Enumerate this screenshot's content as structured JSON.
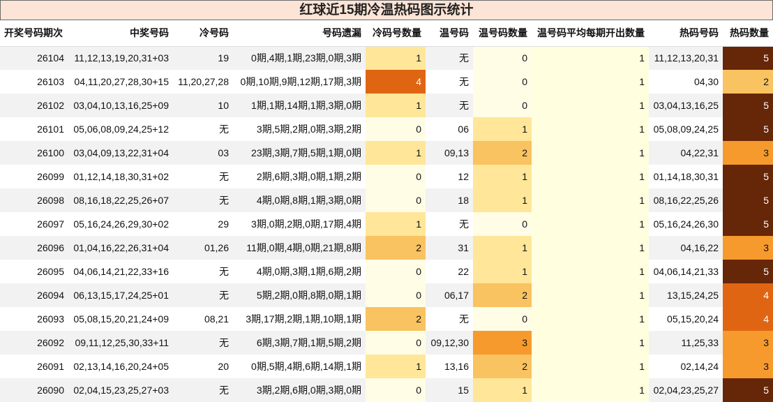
{
  "title": "红球近15期冷温热码图示统计",
  "headers": [
    "开奖号码期次",
    "中奖号码",
    "冷号码",
    "号码遗漏",
    "冷码号数量",
    "温号码",
    "温号码数量",
    "温号码平均每期开出数量",
    "热码号码",
    "热码数量"
  ],
  "rows": [
    {
      "issue": "26104",
      "win": "11,12,13,19,20,31+03",
      "cold": "19",
      "miss": "0期,4期,1期,23期,0期,3期",
      "cold_n": "1",
      "warm": "无",
      "warm_n": "0",
      "avg": "1",
      "hot": "11,12,13,20,31",
      "hot_n": "5"
    },
    {
      "issue": "26103",
      "win": "04,11,20,27,28,30+15",
      "cold": "11,20,27,28",
      "miss": "0期,10期,9期,12期,17期,3期",
      "cold_n": "4",
      "warm": "无",
      "warm_n": "0",
      "avg": "1",
      "hot": "04,30",
      "hot_n": "2"
    },
    {
      "issue": "26102",
      "win": "03,04,10,13,16,25+09",
      "cold": "10",
      "miss": "1期,1期,14期,1期,3期,0期",
      "cold_n": "1",
      "warm": "无",
      "warm_n": "0",
      "avg": "1",
      "hot": "03,04,13,16,25",
      "hot_n": "5"
    },
    {
      "issue": "26101",
      "win": "05,06,08,09,24,25+12",
      "cold": "无",
      "miss": "3期,5期,2期,0期,3期,2期",
      "cold_n": "0",
      "warm": "06",
      "warm_n": "1",
      "avg": "1",
      "hot": "05,08,09,24,25",
      "hot_n": "5"
    },
    {
      "issue": "26100",
      "win": "03,04,09,13,22,31+04",
      "cold": "03",
      "miss": "23期,3期,7期,5期,1期,0期",
      "cold_n": "1",
      "warm": "09,13",
      "warm_n": "2",
      "avg": "1",
      "hot": "04,22,31",
      "hot_n": "3"
    },
    {
      "issue": "26099",
      "win": "01,12,14,18,30,31+02",
      "cold": "无",
      "miss": "2期,6期,3期,0期,1期,2期",
      "cold_n": "0",
      "warm": "12",
      "warm_n": "1",
      "avg": "1",
      "hot": "01,14,18,30,31",
      "hot_n": "5"
    },
    {
      "issue": "26098",
      "win": "08,16,18,22,25,26+07",
      "cold": "无",
      "miss": "4期,0期,8期,1期,3期,0期",
      "cold_n": "0",
      "warm": "18",
      "warm_n": "1",
      "avg": "1",
      "hot": "08,16,22,25,26",
      "hot_n": "5"
    },
    {
      "issue": "26097",
      "win": "05,16,24,26,29,30+02",
      "cold": "29",
      "miss": "3期,0期,2期,0期,17期,4期",
      "cold_n": "1",
      "warm": "无",
      "warm_n": "0",
      "avg": "1",
      "hot": "05,16,24,26,30",
      "hot_n": "5"
    },
    {
      "issue": "26096",
      "win": "01,04,16,22,26,31+04",
      "cold": "01,26",
      "miss": "11期,0期,4期,0期,21期,8期",
      "cold_n": "2",
      "warm": "31",
      "warm_n": "1",
      "avg": "1",
      "hot": "04,16,22",
      "hot_n": "3"
    },
    {
      "issue": "26095",
      "win": "04,06,14,21,22,33+16",
      "cold": "无",
      "miss": "4期,0期,3期,1期,6期,2期",
      "cold_n": "0",
      "warm": "22",
      "warm_n": "1",
      "avg": "1",
      "hot": "04,06,14,21,33",
      "hot_n": "5"
    },
    {
      "issue": "26094",
      "win": "06,13,15,17,24,25+01",
      "cold": "无",
      "miss": "5期,2期,0期,8期,0期,1期",
      "cold_n": "0",
      "warm": "06,17",
      "warm_n": "2",
      "avg": "1",
      "hot": "13,15,24,25",
      "hot_n": "4"
    },
    {
      "issue": "26093",
      "win": "05,08,15,20,21,24+09",
      "cold": "08,21",
      "miss": "3期,17期,2期,1期,10期,1期",
      "cold_n": "2",
      "warm": "无",
      "warm_n": "0",
      "avg": "1",
      "hot": "05,15,20,24",
      "hot_n": "4"
    },
    {
      "issue": "26092",
      "win": "09,11,12,25,30,33+11",
      "cold": "无",
      "miss": "6期,3期,7期,1期,5期,2期",
      "cold_n": "0",
      "warm": "09,12,30",
      "warm_n": "3",
      "avg": "1",
      "hot": "11,25,33",
      "hot_n": "3"
    },
    {
      "issue": "26091",
      "win": "02,13,14,16,20,24+05",
      "cold": "20",
      "miss": "0期,5期,4期,6期,14期,1期",
      "cold_n": "1",
      "warm": "13,16",
      "warm_n": "2",
      "avg": "1",
      "hot": "02,14,24",
      "hot_n": "3"
    },
    {
      "issue": "26090",
      "win": "02,04,15,23,25,27+03",
      "cold": "无",
      "miss": "3期,2期,6期,0期,3期,0期",
      "cold_n": "0",
      "warm": "15",
      "warm_n": "1",
      "avg": "1",
      "hot": "02,04,23,25,27",
      "hot_n": "5"
    }
  ]
}
